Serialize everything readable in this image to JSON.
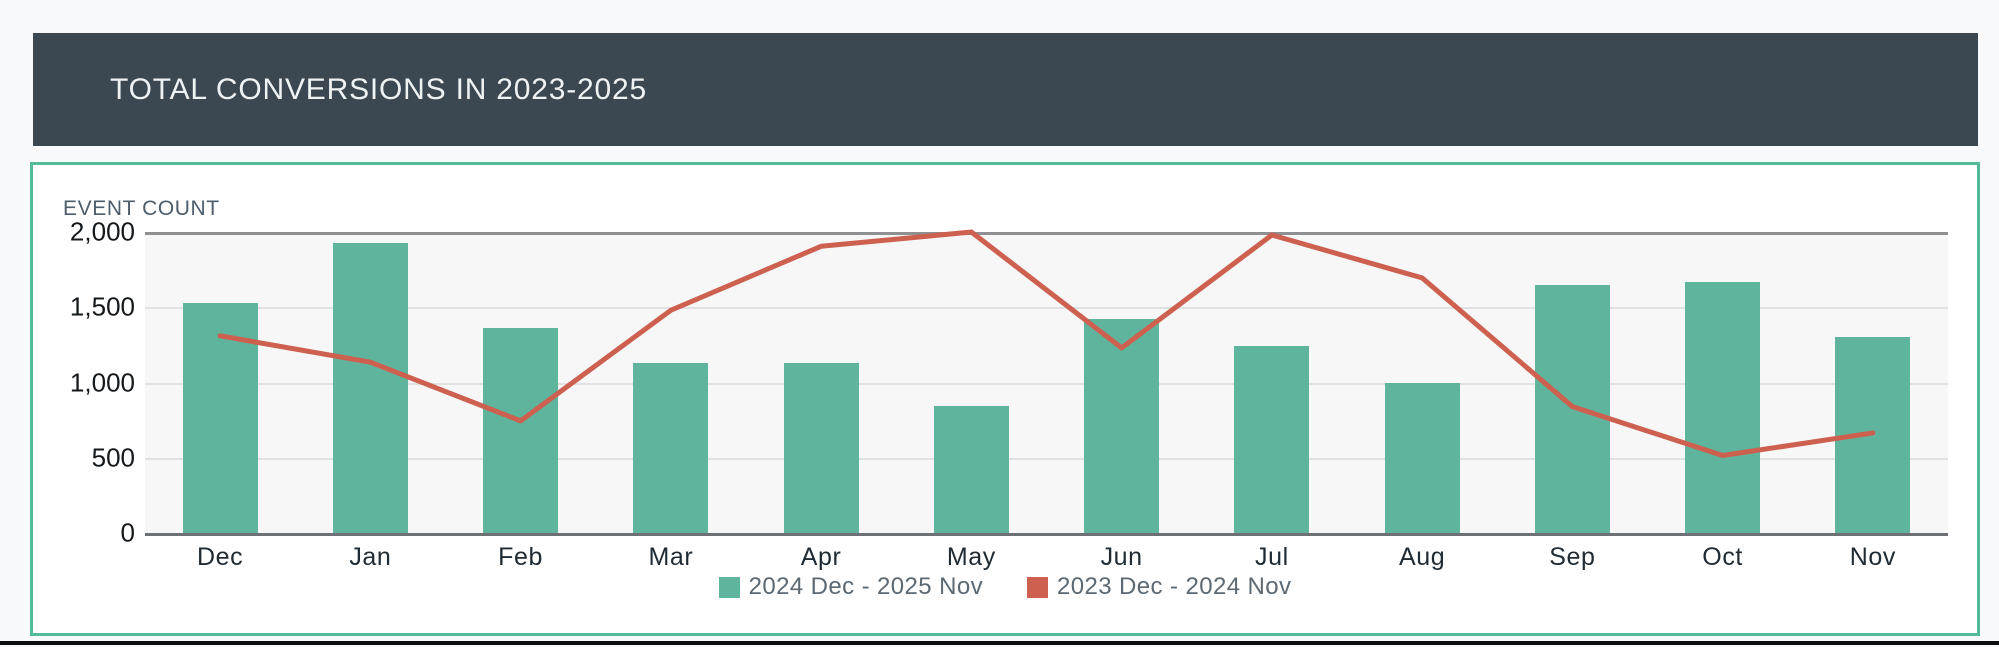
{
  "header": {
    "title": "TOTAL CONVERSIONS IN 2023-2025"
  },
  "colors": {
    "header_bg": "#3b4852",
    "card_border": "#53bb97",
    "bar": "#5fb49d",
    "line": "#cd604f",
    "plot_bg": "#f7f7f8",
    "gridline": "#e0e1e2",
    "page_bg": "#f8f9fa"
  },
  "chart_data": {
    "type": "combo",
    "title": "TOTAL CONVERSIONS IN 2023-2025",
    "ylabel": "EVENT COUNT",
    "xlabel": "",
    "ylim": [
      0,
      2000
    ],
    "grid": true,
    "legend_position": "bottom",
    "categories": [
      "Dec",
      "Jan",
      "Feb",
      "Mar",
      "Apr",
      "May",
      "Jun",
      "Jul",
      "Aug",
      "Sep",
      "Oct",
      "Nov"
    ],
    "y_ticks": [
      {
        "label": "2,000",
        "value": 2000
      },
      {
        "label": "1,500",
        "value": 1500
      },
      {
        "label": "1,000",
        "value": 1000
      },
      {
        "label": "500",
        "value": 500
      },
      {
        "label": "0",
        "value": 0
      }
    ],
    "series": [
      {
        "name": "2024 Dec - 2025 Nov",
        "type": "bar",
        "color": "#5fb49d",
        "values": [
          1530,
          1930,
          1360,
          1130,
          1130,
          845,
          1420,
          1245,
          1000,
          1645,
          1670,
          1305
        ]
      },
      {
        "name": "2023 Dec - 2024 Nov",
        "type": "line",
        "color": "#cd604f",
        "values": [
          1310,
          1135,
          745,
          1480,
          1905,
          2000,
          1230,
          1980,
          1695,
          840,
          515,
          665
        ]
      }
    ]
  }
}
